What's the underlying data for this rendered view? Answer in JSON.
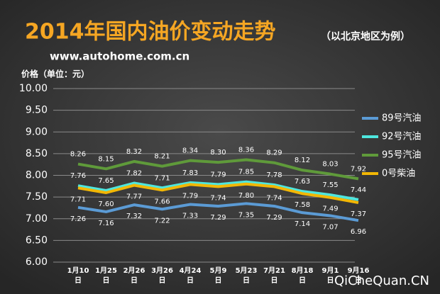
{
  "chart_data": {
    "type": "line",
    "title": "2014年国内油价变动走势",
    "subtitle": "（以北京地区为例）",
    "source": "www.autohome.com.cn",
    "y_label": "价格（单位：元）",
    "watermark": "QiCheQuan.CN",
    "categories": [
      "1月10日",
      "1月25日",
      "2月26日",
      "3月26日",
      "4月24日",
      "5月9日",
      "5月23日",
      "7月21日",
      "8月18日",
      "9月1日",
      "9月16日"
    ],
    "series": [
      {
        "name": "89号汽油",
        "color": "#5b9bd5",
        "label_side": "below",
        "values": [
          7.26,
          7.16,
          7.32,
          7.22,
          7.33,
          7.29,
          7.35,
          7.29,
          7.14,
          7.07,
          6.96
        ],
        "value_labels": [
          "7.26",
          "7.16",
          "7.32",
          "7.22",
          "7.33",
          "7.29",
          "7.35",
          "7.29",
          "7.14",
          "7.07",
          "6.96"
        ]
      },
      {
        "name": "92号汽油",
        "color": "#4ee6de",
        "label_side": "above",
        "values": [
          7.76,
          7.65,
          7.82,
          7.71,
          7.83,
          7.79,
          7.85,
          7.78,
          7.63,
          7.55,
          7.44
        ],
        "value_labels": [
          "7.76",
          "7.65",
          "7.82",
          "7.71",
          "7.83",
          "7.79",
          "7.85",
          "7.78",
          "7.63",
          "7.55",
          "7.44"
        ]
      },
      {
        "name": "95号汽油",
        "color": "#5f9a3a",
        "label_side": "above",
        "values": [
          8.26,
          8.15,
          8.32,
          8.21,
          8.34,
          8.3,
          8.36,
          8.29,
          8.12,
          8.03,
          7.92
        ],
        "value_labels": [
          "8.26",
          "8.15",
          "8.32",
          "8.21",
          "8.34",
          "8.30",
          "8.36",
          "8.29",
          "8.12",
          "8.03",
          "7.92"
        ]
      },
      {
        "name": "0号柴油",
        "color": "#f2b705",
        "label_side": "below",
        "values": [
          7.71,
          7.6,
          7.77,
          7.66,
          7.79,
          7.74,
          7.8,
          7.74,
          7.58,
          7.49,
          7.37
        ],
        "value_labels": [
          "7.71",
          "7.60",
          "7.77",
          "7.66",
          "7.79",
          "7.74",
          "7.80",
          "7.74",
          "7.58",
          "7.49",
          "7.37"
        ]
      }
    ],
    "ylim": [
      6,
      10
    ],
    "yticks": [
      {
        "value": 6,
        "label": "6.00"
      },
      {
        "value": 6.5,
        "label": "6.50"
      },
      {
        "value": 7,
        "label": "7.00"
      },
      {
        "value": 7.5,
        "label": "7.50"
      },
      {
        "value": 8,
        "label": "8.00"
      },
      {
        "value": 8.5,
        "label": "8.50"
      },
      {
        "value": 9,
        "label": "9.00"
      },
      {
        "value": 9.5,
        "label": "9.50"
      },
      {
        "value": 10,
        "label": "10.00"
      }
    ],
    "grid": true
  }
}
